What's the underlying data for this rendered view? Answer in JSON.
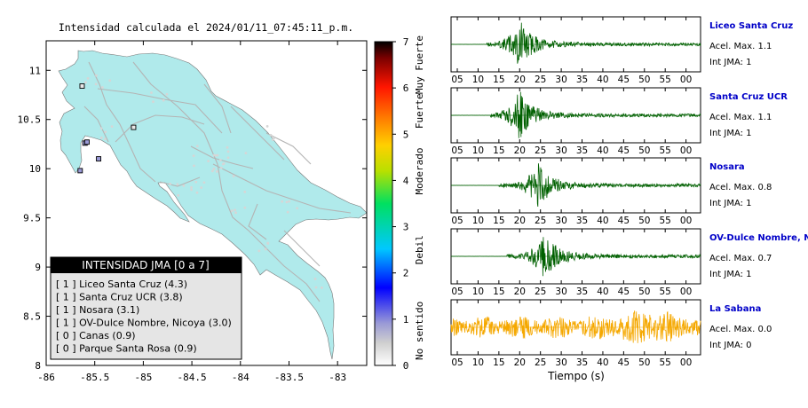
{
  "map": {
    "title": "Intensidad calculada el 2024/01/11_07:45:11_p.m.",
    "x_ticks": [
      "-86",
      "-85.5",
      "-85",
      "-84.5",
      "-84",
      "-83.5",
      "-83"
    ],
    "y_ticks": [
      "11",
      "10.5",
      "10",
      "9.5",
      "9",
      "8.5",
      "8"
    ],
    "colors": {
      "land": "#b0eaeb",
      "roads": "#b4b4b4",
      "frame": "#000000"
    }
  },
  "colorbar": {
    "ticks": [
      "0",
      "1",
      "2",
      "3",
      "4",
      "5",
      "6",
      "7"
    ],
    "class_labels": [
      "No sentido",
      "Debil",
      "Moderado",
      "Fuerte",
      "Muy Fuerte"
    ],
    "colors": [
      "#ffffff",
      "#9a9ad6",
      "#0000ff",
      "#00c8ff",
      "#00e060",
      "#b8e000",
      "#ffd000",
      "#ff8000",
      "#ff1500",
      "#7a0000",
      "#000000"
    ]
  },
  "legend": {
    "title": "INTENSIDAD JMA [0 a 7]",
    "items": [
      "[ 1 ]  Liceo Santa Cruz (4.3)",
      "[ 1 ]  Santa Cruz UCR (3.8)",
      "[ 1 ]  Nosara (3.1)",
      "[ 1 ]  OV-Dulce Nombre, Nicoya (3.0)",
      "[ 0 ]  Canas (0.9)",
      "[ 0 ]  Parque Santa Rosa (0.9)"
    ]
  },
  "traces": [
    {
      "station": "Liceo Santa Cruz",
      "acel": "Acel. Max. 1.1",
      "jma": "Int JMA: 1",
      "color": "#006000"
    },
    {
      "station": "Santa Cruz UCR",
      "acel": "Acel. Max. 1.1",
      "jma": "Int JMA: 1",
      "color": "#006000"
    },
    {
      "station": "Nosara",
      "acel": "Acel. Max. 0.8",
      "jma": "Int JMA: 1",
      "color": "#006000"
    },
    {
      "station": "OV-Dulce Nombre, Nicoya",
      "acel": "Acel. Max. 0.7",
      "jma": "Int JMA: 1",
      "color": "#006000"
    },
    {
      "station": "La Sabana",
      "acel": "Acel. Max. 0.0",
      "jma": "Int JMA: 0",
      "color": "#f5a800"
    }
  ],
  "time_ticks": [
    "05",
    "10",
    "15",
    "20",
    "25",
    "30",
    "35",
    "40",
    "45",
    "50",
    "55",
    "00"
  ],
  "xlabel": "Tiempo (s)",
  "station_label_color": "#0000c8",
  "chart_data": [
    {
      "type": "heatmap",
      "title": "Intensidad calculada el 2024/01/11_07:45:11_p.m.",
      "xlim": [
        -86,
        -82.7
      ],
      "ylim": [
        8,
        11.3
      ],
      "x_ticks": [
        -86,
        -85.5,
        -85,
        -84.5,
        -84,
        -83.5,
        -83
      ],
      "y_ticks": [
        11,
        10.5,
        10,
        9.5,
        9,
        8.5,
        8
      ],
      "colorbar_range": [
        0,
        7
      ],
      "colorbar_labels": [
        "No sentido",
        "Debil",
        "Moderado",
        "Fuerte",
        "Muy Fuerte"
      ],
      "stations": [
        {
          "name": "Liceo Santa Cruz",
          "lon": -85.6,
          "lat": 10.26,
          "jma": 1,
          "value": 4.3
        },
        {
          "name": "Santa Cruz UCR",
          "lon": -85.58,
          "lat": 10.27,
          "jma": 1,
          "value": 3.8
        },
        {
          "name": "Nosara",
          "lon": -85.65,
          "lat": 9.98,
          "jma": 1,
          "value": 3.1
        },
        {
          "name": "OV-Dulce Nombre, Nicoya",
          "lon": -85.46,
          "lat": 10.1,
          "jma": 1,
          "value": 3.0
        },
        {
          "name": "Canas",
          "lon": -85.1,
          "lat": 10.42,
          "jma": 0,
          "value": 0.9
        },
        {
          "name": "Parque Santa Rosa",
          "lon": -85.63,
          "lat": 10.84,
          "jma": 0,
          "value": 0.9
        }
      ]
    },
    {
      "type": "line",
      "xlabel": "Tiempo (s)",
      "x_ticks": [
        "05",
        "10",
        "15",
        "20",
        "25",
        "30",
        "35",
        "40",
        "45",
        "50",
        "55",
        "00"
      ],
      "series": [
        {
          "name": "Liceo Santa Cruz",
          "peak_time_s": 20,
          "signal_start_s": 12,
          "acel_max": 1.1,
          "jma": 1
        },
        {
          "name": "Santa Cruz UCR",
          "peak_time_s": 20,
          "signal_start_s": 13,
          "acel_max": 1.1,
          "jma": 1
        },
        {
          "name": "Nosara",
          "peak_time_s": 24.5,
          "signal_start_s": 15,
          "acel_max": 0.8,
          "jma": 1
        },
        {
          "name": "OV-Dulce Nombre, Nicoya",
          "peak_time_s": 26,
          "signal_start_s": 17,
          "acel_max": 0.7,
          "jma": 1
        },
        {
          "name": "La Sabana",
          "peak_time_s": 50,
          "signal_start_s": 4,
          "acel_max": 0.0,
          "jma": 0
        }
      ]
    }
  ]
}
